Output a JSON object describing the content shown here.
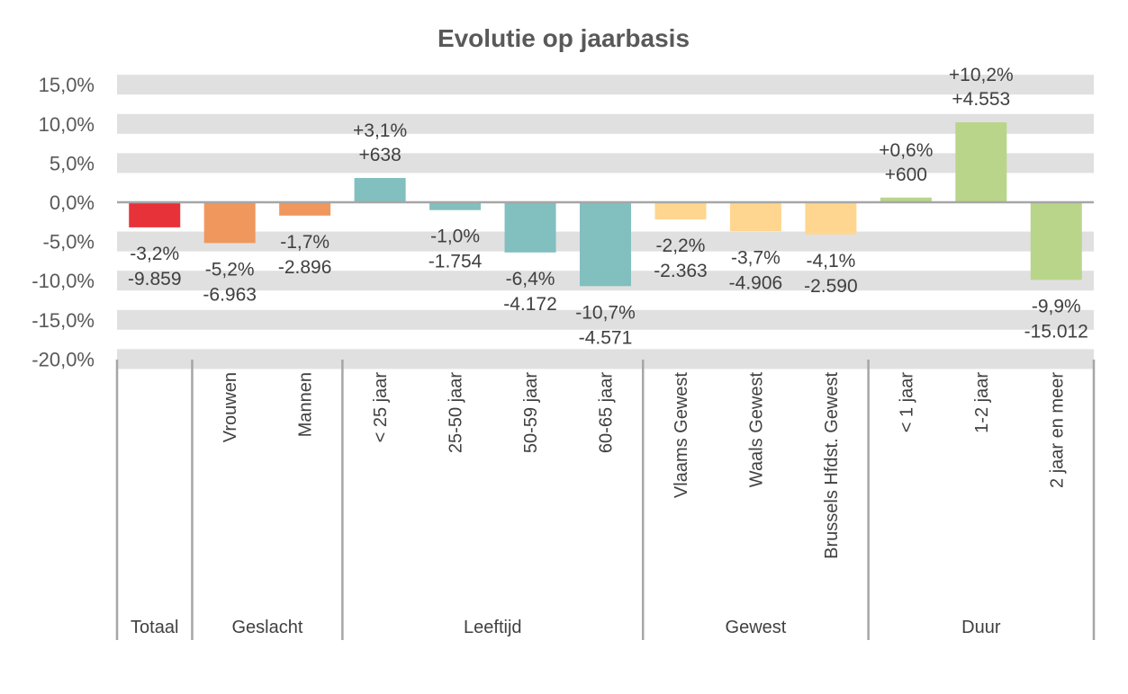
{
  "chart_data": {
    "type": "bar",
    "title": "Evolutie op jaarbasis",
    "xlabel": "",
    "ylabel": "",
    "ylim": [
      -20,
      15
    ],
    "yticks": [
      "15,0%",
      "10,0%",
      "5,0%",
      "0,0%",
      "-5,0%",
      "-10,0%",
      "-15,0%",
      "-20,0%"
    ],
    "ytick_values": [
      15,
      10,
      5,
      0,
      -5,
      -10,
      -15,
      -20
    ],
    "grid": "horizontal bands",
    "legend": "none",
    "categories": [
      "",
      "Vrouwen",
      "Mannen",
      "< 25 jaar",
      "25-50 jaar",
      "50-59 jaar",
      "60-65 jaar",
      "Vlaams Gewest",
      "Waals Gewest",
      "Brussels Hfdst. Gewest",
      "< 1 jaar",
      "1-2 jaar",
      "2 jaar en meer"
    ],
    "values": [
      -3.2,
      -5.2,
      -1.7,
      3.1,
      -1.0,
      -6.4,
      -10.7,
      -2.2,
      -3.7,
      -4.1,
      0.6,
      10.2,
      -9.9
    ],
    "pct_labels": [
      "-3,2%",
      "-5,2%",
      "-1,7%",
      "+3,1%",
      "-1,0%",
      "-6,4%",
      "-10,7%",
      "-2,2%",
      "-3,7%",
      "-4,1%",
      "+0,6%",
      "+10,2%",
      "-9,9%"
    ],
    "count_labels": [
      "-9.859",
      "-6.963",
      "-2.896",
      "+638",
      "-1.754",
      "-4.172",
      "-4.571",
      "-2.363",
      "-4.906",
      "-2.590",
      "+600",
      "+4.553",
      "-15.012"
    ],
    "groups": [
      {
        "label": "Totaal",
        "count": 1,
        "color": "#e8323a"
      },
      {
        "label": "Geslacht",
        "count": 2,
        "color": "#f0975e"
      },
      {
        "label": "Leeftijd",
        "count": 4,
        "color": "#82bfbf"
      },
      {
        "label": "Gewest",
        "count": 3,
        "color": "#ffd68f"
      },
      {
        "label": "Duur",
        "count": 3,
        "color": "#b9d58a"
      }
    ]
  }
}
